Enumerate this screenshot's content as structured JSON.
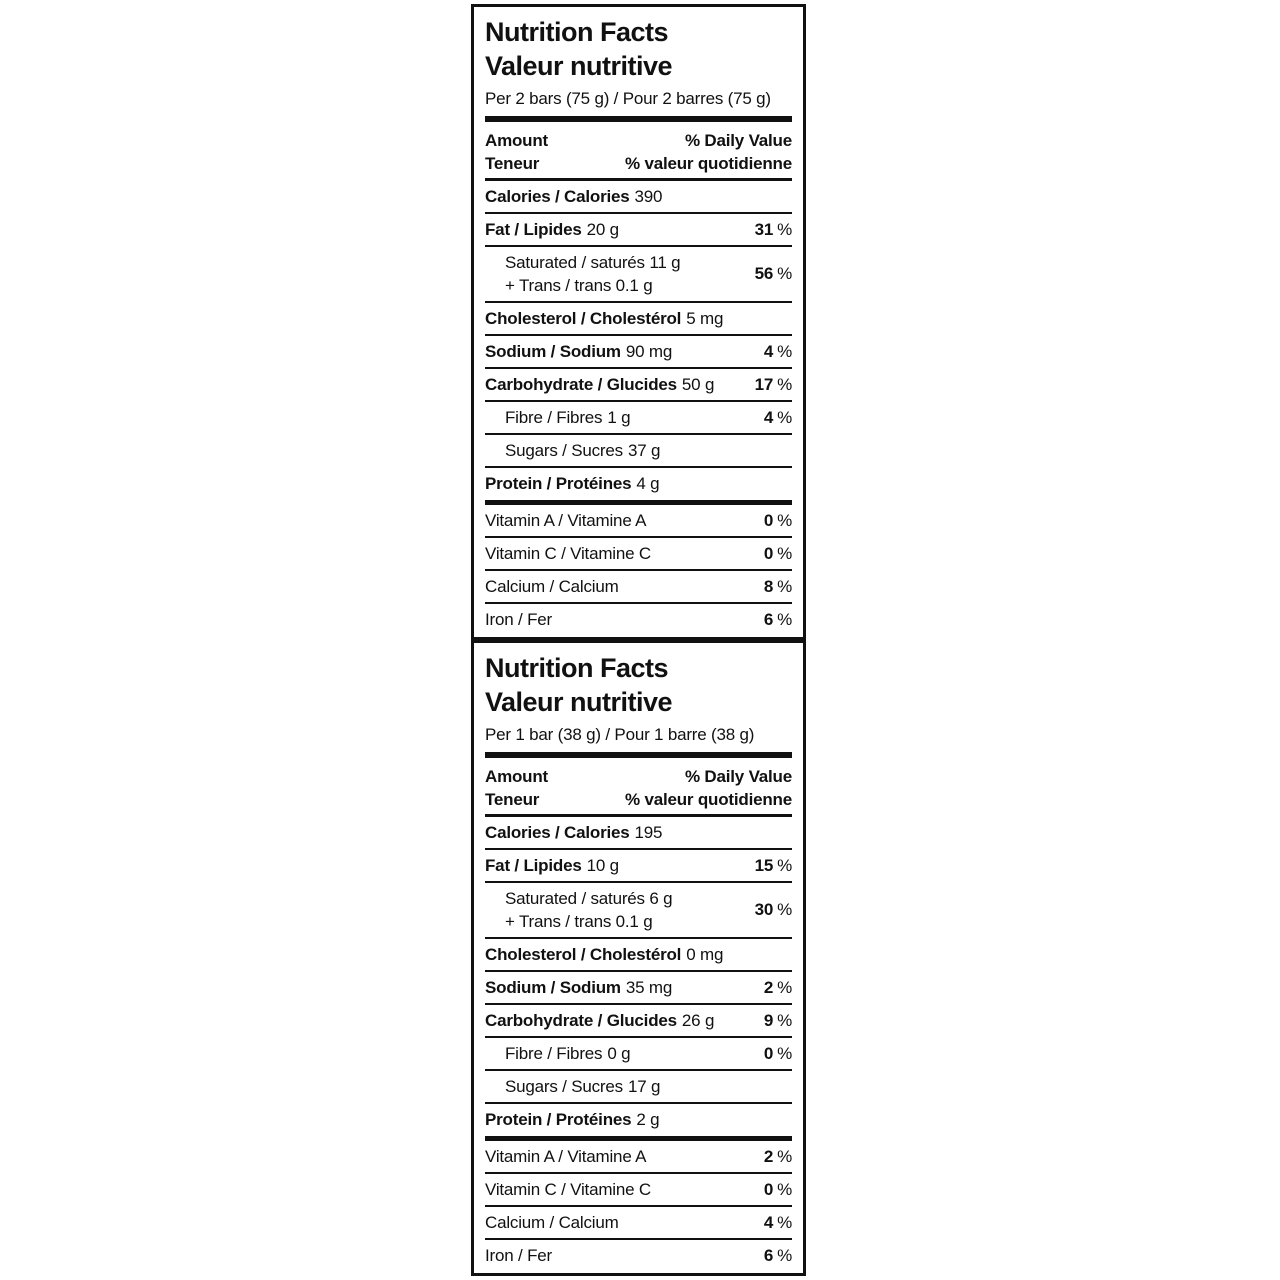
{
  "colors": {
    "text": "#111111",
    "background": "#ffffff",
    "border": "#111111"
  },
  "percent_sign": "%",
  "panels": [
    {
      "title_en": "Nutrition Facts",
      "title_fr": "Valeur nutritive",
      "serving": "Per 2 bars (75 g) / Pour 2 barres (75 g)",
      "amount_en": "Amount",
      "amount_fr": "Teneur",
      "dv_en": "% Daily Value",
      "dv_fr": "% valeur quotidienne",
      "calories": {
        "name": "Calories / Calories",
        "value": "390"
      },
      "fat": {
        "name": "Fat / Lipides",
        "value": "20 g",
        "dv": "31"
      },
      "saturated": {
        "line1": "Saturated / saturés 11 g",
        "line2": "+ Trans / trans 0.1 g",
        "dv": "56"
      },
      "cholesterol": {
        "name": "Cholesterol / Cholestérol",
        "value": "5 mg"
      },
      "sodium": {
        "name": "Sodium / Sodium",
        "value": "90 mg",
        "dv": "4"
      },
      "carbohydrate": {
        "name": "Carbohydrate / Glucides",
        "value": "50 g",
        "dv": "17"
      },
      "fibre": {
        "name": "Fibre / Fibres",
        "value": "1 g",
        "dv": "4"
      },
      "sugars": {
        "name": "Sugars / Sucres",
        "value": "37 g"
      },
      "protein": {
        "name": "Protein / Protéines",
        "value": "4 g"
      },
      "vitamin_a": {
        "name": "Vitamin A / Vitamine A",
        "dv": "0"
      },
      "vitamin_c": {
        "name": "Vitamin C / Vitamine C",
        "dv": "0"
      },
      "calcium": {
        "name": "Calcium / Calcium",
        "dv": "8"
      },
      "iron": {
        "name": "Iron / Fer",
        "dv": "6"
      }
    },
    {
      "title_en": "Nutrition Facts",
      "title_fr": "Valeur nutritive",
      "serving": "Per 1 bar (38 g) / Pour 1 barre (38 g)",
      "amount_en": "Amount",
      "amount_fr": "Teneur",
      "dv_en": "% Daily Value",
      "dv_fr": "% valeur quotidienne",
      "calories": {
        "name": "Calories / Calories",
        "value": "195"
      },
      "fat": {
        "name": "Fat / Lipides",
        "value": "10 g",
        "dv": "15"
      },
      "saturated": {
        "line1": "Saturated / saturés 6 g",
        "line2": "+ Trans / trans 0.1 g",
        "dv": "30"
      },
      "cholesterol": {
        "name": "Cholesterol / Cholestérol",
        "value": "0 mg"
      },
      "sodium": {
        "name": "Sodium / Sodium",
        "value": "35 mg",
        "dv": "2"
      },
      "carbohydrate": {
        "name": "Carbohydrate / Glucides",
        "value": "26 g",
        "dv": "9"
      },
      "fibre": {
        "name": "Fibre / Fibres",
        "value": "0 g",
        "dv": "0"
      },
      "sugars": {
        "name": "Sugars / Sucres",
        "value": "17 g"
      },
      "protein": {
        "name": "Protein / Protéines",
        "value": "2 g"
      },
      "vitamin_a": {
        "name": "Vitamin A / Vitamine A",
        "dv": "2"
      },
      "vitamin_c": {
        "name": "Vitamin C / Vitamine C",
        "dv": "0"
      },
      "calcium": {
        "name": "Calcium / Calcium",
        "dv": "4"
      },
      "iron": {
        "name": "Iron / Fer",
        "dv": "6"
      }
    }
  ]
}
